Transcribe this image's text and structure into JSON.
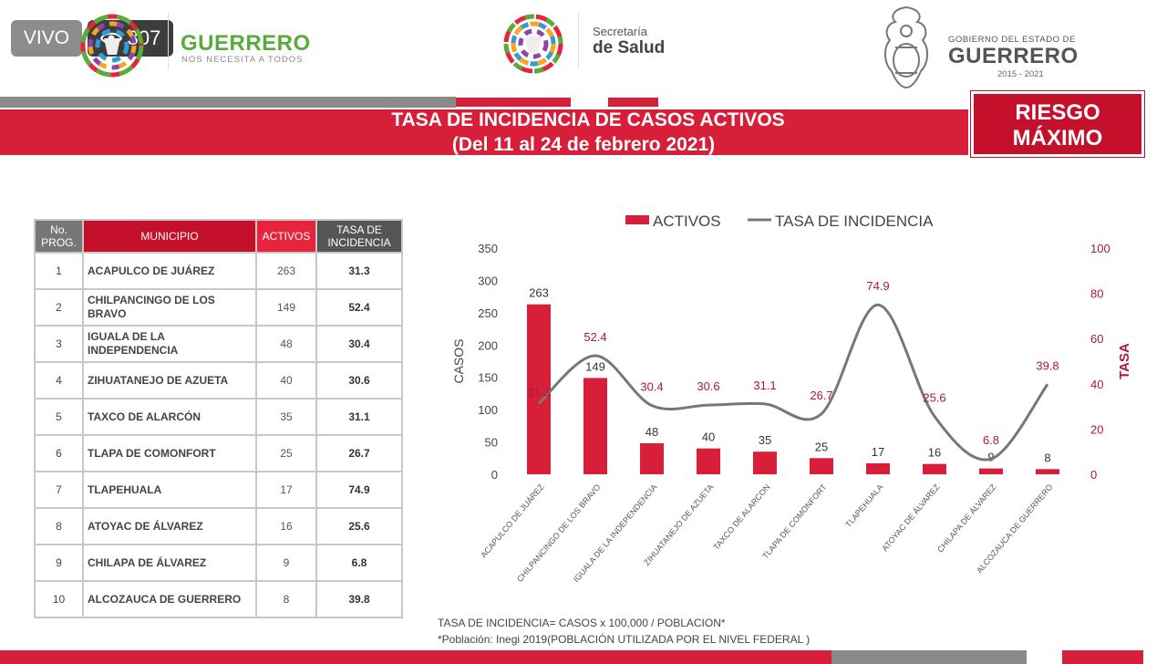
{
  "overlay": {
    "live_label": "VIVO",
    "view_count": "307"
  },
  "header": {
    "guerrero_name": "GUERRERO",
    "guerrero_tagline": "NOS NECESITA A TODOS",
    "salud_top": "Secretaría",
    "salud_bottom": "de Salud",
    "gov_top": "GOBIERNO DEL ESTADO DE",
    "gov_name": "GUERRERO",
    "gov_years": "2015 - 2021"
  },
  "title": {
    "line1": "TASA DE INCIDENCIA DE CASOS ACTIVOS",
    "line2": "(Del 11 al 24 de febrero 2021)",
    "risk_line1": "RIESGO",
    "risk_line2": "MÁXIMO"
  },
  "table": {
    "headers": {
      "no": "No. PROG.",
      "municipio": "MUNICIPIO",
      "activos": "ACTIVOS",
      "tasa": "TASA DE INCIDENCIA"
    },
    "rows": [
      {
        "no": "1",
        "municipio": "ACAPULCO DE JUÁREZ",
        "activos": "263",
        "tasa": "31.3"
      },
      {
        "no": "2",
        "municipio": "CHILPANCINGO DE LOS BRAVO",
        "activos": "149",
        "tasa": "52.4"
      },
      {
        "no": "3",
        "municipio": "IGUALA DE LA INDEPENDENCIA",
        "activos": "48",
        "tasa": "30.4"
      },
      {
        "no": "4",
        "municipio": "ZIHUATANEJO DE AZUETA",
        "activos": "40",
        "tasa": "30.6"
      },
      {
        "no": "5",
        "municipio": "TAXCO DE ALARCÓN",
        "activos": "35",
        "tasa": "31.1"
      },
      {
        "no": "6",
        "municipio": "TLAPA DE COMONFORT",
        "activos": "25",
        "tasa": "26.7"
      },
      {
        "no": "7",
        "municipio": "TLAPEHUALA",
        "activos": "17",
        "tasa": "74.9"
      },
      {
        "no": "8",
        "municipio": "ATOYAC DE ÁLVAREZ",
        "activos": "16",
        "tasa": "25.6"
      },
      {
        "no": "9",
        "municipio": "CHILAPA DE ÁLVAREZ",
        "activos": "9",
        "tasa": "6.8"
      },
      {
        "no": "10",
        "municipio": "ALCOZAUCA DE GUERRERO",
        "activos": "8",
        "tasa": "39.8"
      }
    ]
  },
  "chart_data": {
    "type": "bar",
    "categories": [
      "ACAPULCO DE JUÁREZ",
      "CHILPANCINGO DE LOS BRAVO",
      "IGUALA DE LA INDEPENDENCIA",
      "ZIHUATANEJO DE AZUETA",
      "TAXCO DE ALARCON",
      "TLAPA DE COMONFORT",
      "TLAPEHUALA",
      "ATOYAC DE ÁLVAREZ",
      "CHILAPA DE ÁLVAREZ",
      "ALCOZAUCA DE GUERRERO"
    ],
    "series": [
      {
        "name": "ACTIVOS",
        "type": "bar",
        "axis": "left",
        "color": "#d71f3a",
        "values": [
          263,
          149,
          48,
          40,
          35,
          25,
          17,
          16,
          9,
          8
        ]
      },
      {
        "name": "TASA DE INCIDENCIA",
        "type": "line",
        "axis": "right",
        "color": "#777777",
        "values": [
          31.3,
          52.4,
          30.4,
          30.6,
          31.1,
          26.7,
          74.9,
          25.6,
          6.8,
          39.8
        ]
      }
    ],
    "ylabel": "CASOS",
    "y2label": "TASA",
    "ylim": [
      0,
      350
    ],
    "y2lim": [
      0,
      100
    ],
    "yticks": [
      0,
      50,
      100,
      150,
      200,
      250,
      300,
      350
    ],
    "y2ticks": [
      0,
      20,
      40,
      60,
      80,
      100
    ],
    "legend_position": "top",
    "grid": false,
    "label_colors": {
      "bar_value": "#333333",
      "line_value": "#b0173a",
      "axis2": "#b0173a"
    }
  },
  "footer": {
    "note1": "TASA DE INCIDENCIA= CASOS x 100,000 / POBLACION*",
    "note2": "*Población: Inegi 2019(POBLACIÓN UTILIZADA POR EL NIVEL FEDERAL )"
  }
}
